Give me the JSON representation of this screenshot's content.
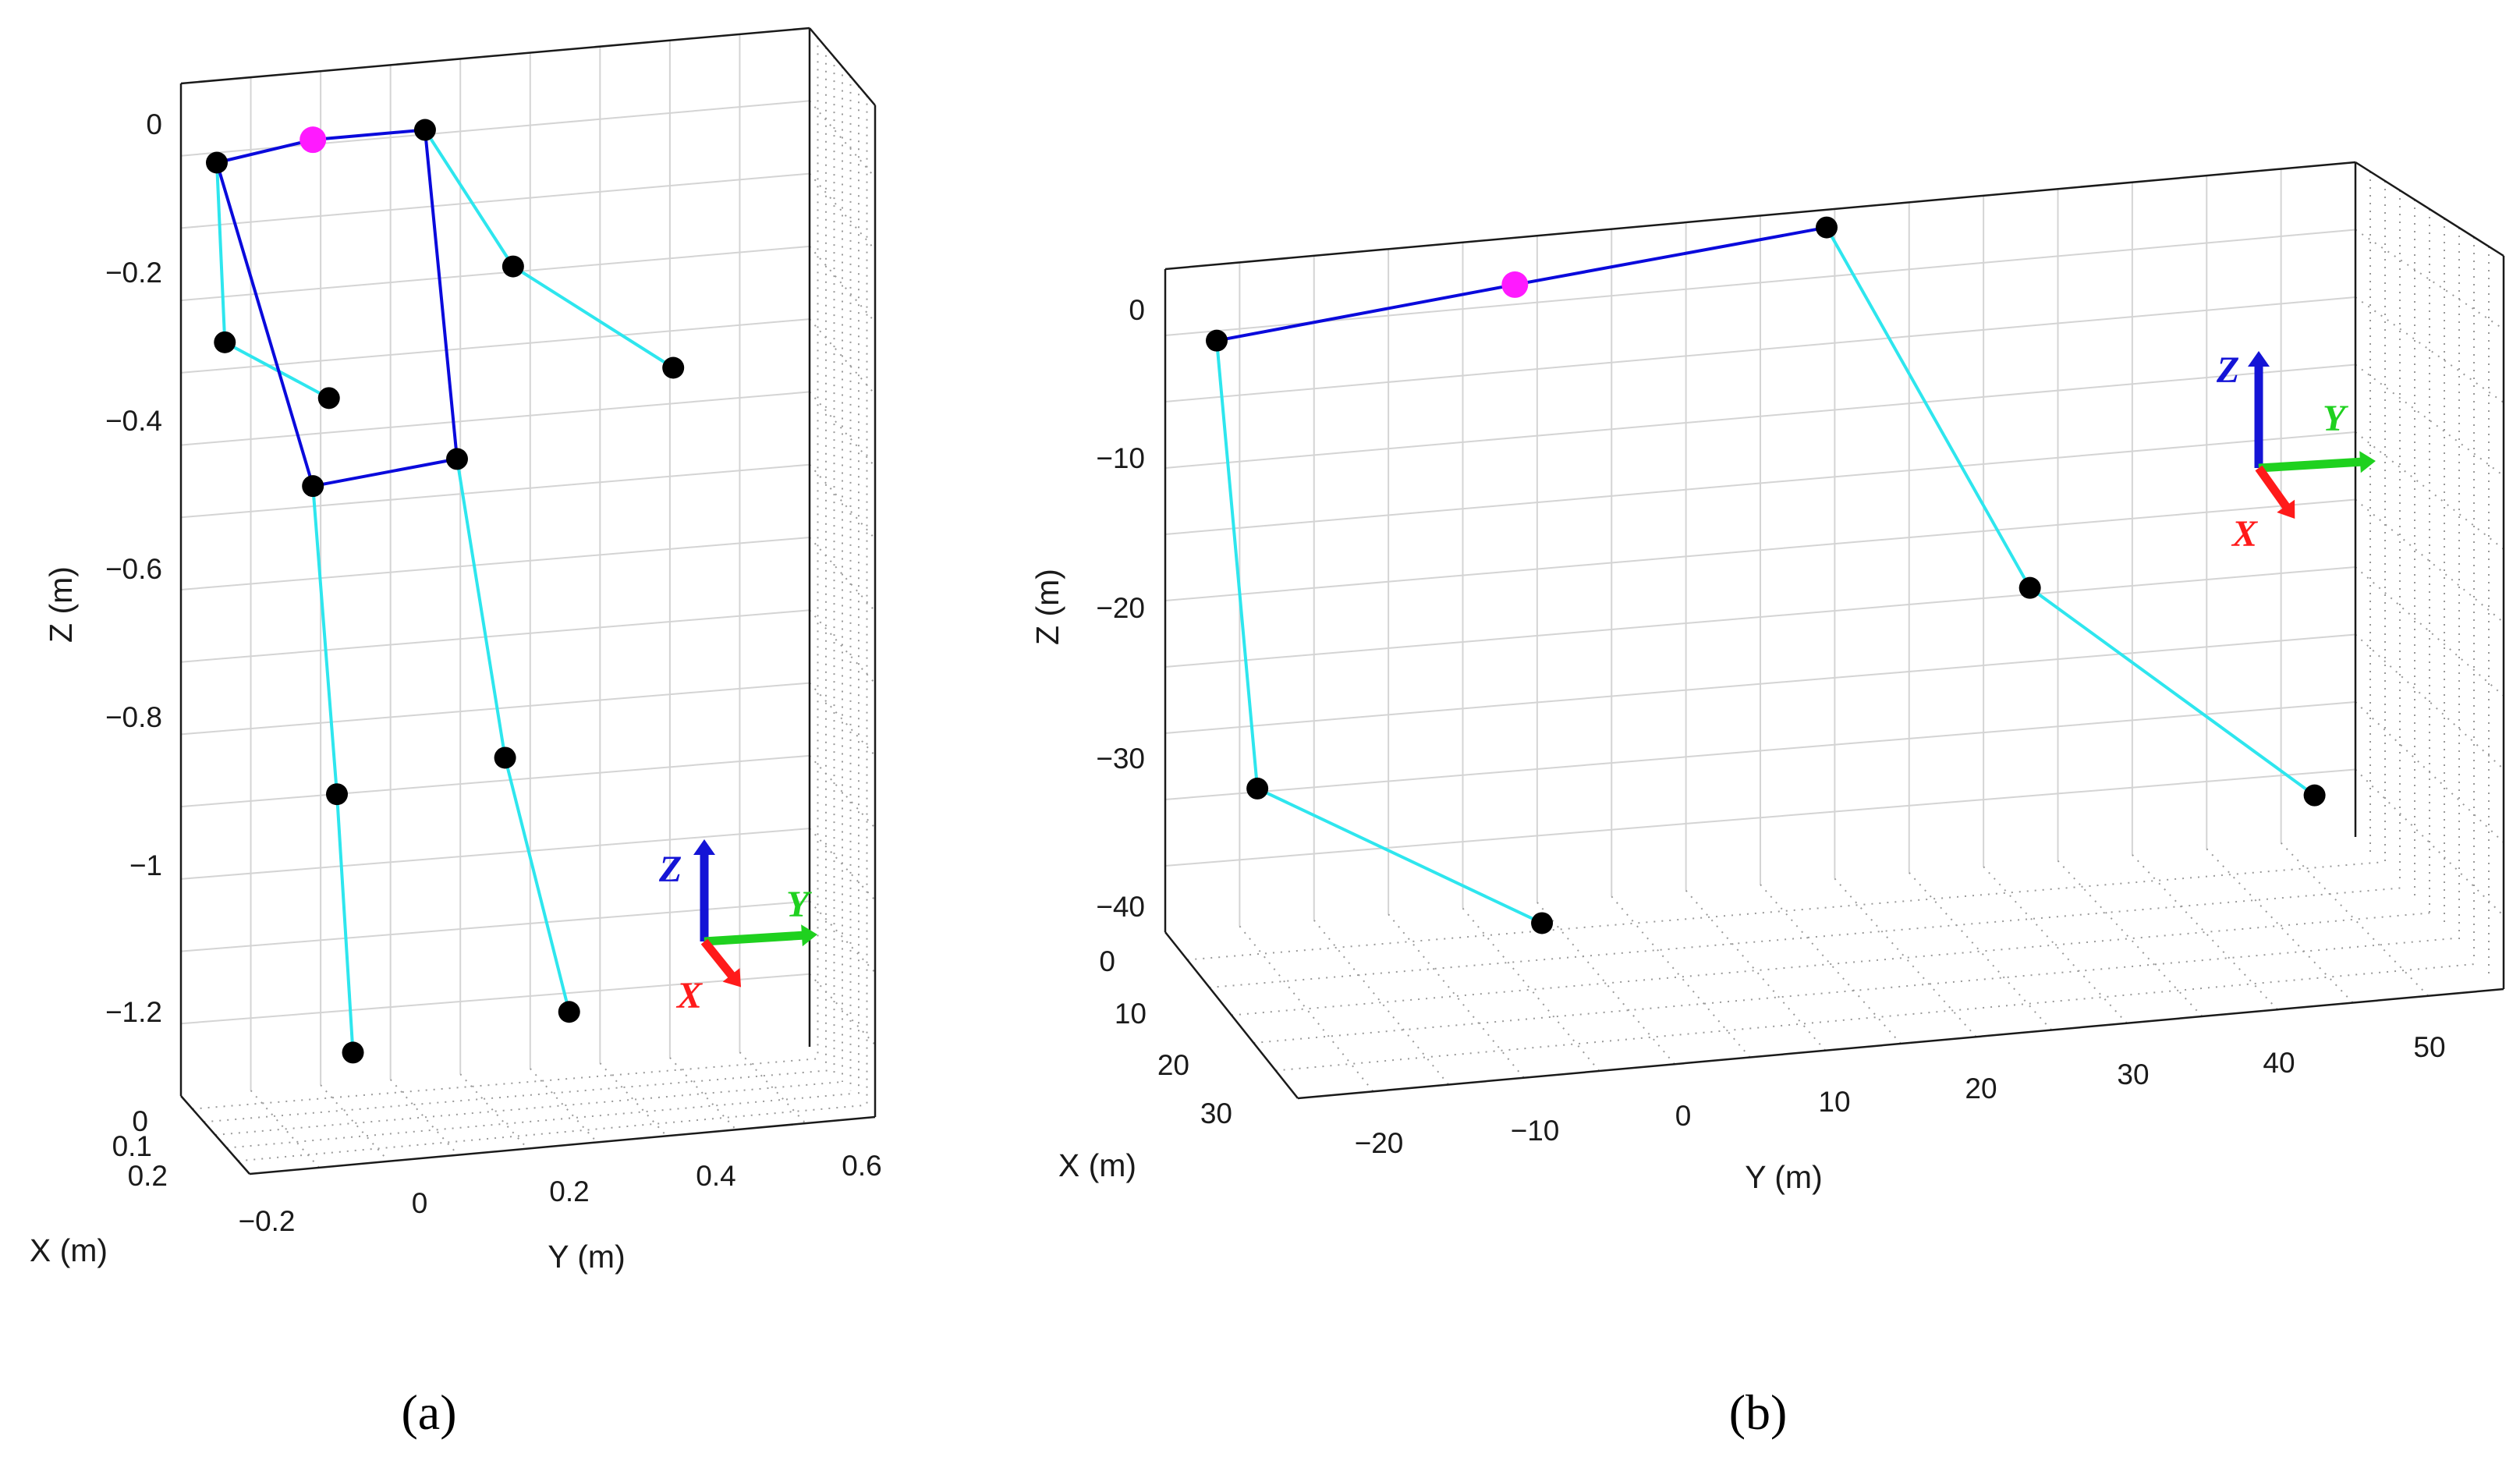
{
  "chart_data": [
    {
      "type": "scatter",
      "panel": "(a)",
      "projection": "3d",
      "xlabel": "X (m)",
      "ylabel": "Y (m)",
      "zlabel": "Z (m)",
      "x_ticks": [
        "0",
        "0.1",
        "0.2"
      ],
      "y_ticks": [
        "−0.2",
        "0",
        "0.2",
        "0.4",
        "0.6"
      ],
      "z_ticks": [
        "0",
        "−0.2",
        "−0.4",
        "−0.6",
        "−0.8",
        "−1",
        "−1.2"
      ],
      "grid": true,
      "triad": {
        "x": "X",
        "y": "Y",
        "z": "Z"
      },
      "points_yz": [
        {
          "y": -0.2,
          "z": -0.02,
          "kind": "joint"
        },
        {
          "y": -0.08,
          "z": 0.0,
          "kind": "center"
        },
        {
          "y": 0.06,
          "z": 0.0,
          "kind": "joint"
        },
        {
          "y": -0.19,
          "z": -0.27,
          "kind": "joint"
        },
        {
          "y": -0.06,
          "z": -0.36,
          "kind": "joint"
        },
        {
          "y": 0.17,
          "z": -0.2,
          "kind": "joint"
        },
        {
          "y": 0.37,
          "z": -0.36,
          "kind": "joint"
        },
        {
          "y": -0.08,
          "z": -0.48,
          "kind": "joint"
        },
        {
          "y": 0.1,
          "z": -0.46,
          "kind": "joint"
        },
        {
          "y": -0.05,
          "z": -0.91,
          "kind": "joint"
        },
        {
          "y": 0.16,
          "z": -0.88,
          "kind": "joint"
        },
        {
          "y": -0.03,
          "z": -1.27,
          "kind": "joint"
        },
        {
          "y": 0.24,
          "z": -1.24,
          "kind": "joint"
        }
      ],
      "body_links": [
        [
          0,
          1
        ],
        [
          1,
          2
        ],
        [
          0,
          7
        ],
        [
          2,
          8
        ],
        [
          7,
          8
        ]
      ],
      "limb_links": [
        [
          0,
          3
        ],
        [
          3,
          4
        ],
        [
          2,
          5
        ],
        [
          5,
          6
        ],
        [
          7,
          9
        ],
        [
          9,
          11
        ],
        [
          8,
          10
        ],
        [
          10,
          12
        ]
      ]
    },
    {
      "type": "scatter",
      "panel": "(b)",
      "projection": "3d",
      "xlabel": "X (m)",
      "ylabel": "Y (m)",
      "zlabel": "Z (m)",
      "x_ticks": [
        "0",
        "10",
        "20",
        "30"
      ],
      "y_ticks": [
        "−20",
        "−10",
        "0",
        "10",
        "20",
        "30",
        "40",
        "50"
      ],
      "z_ticks": [
        "0",
        "−10",
        "−20",
        "−30",
        "−40"
      ],
      "grid": true,
      "triad": {
        "x": "X",
        "y": "Y",
        "z": "Z"
      },
      "points_yz": [
        {
          "y": -28,
          "z": -1,
          "kind": "joint"
        },
        {
          "y": -6,
          "z": 1,
          "kind": "center"
        },
        {
          "y": 17,
          "z": 3,
          "kind": "joint"
        },
        {
          "y": -25,
          "z": -32,
          "kind": "joint"
        },
        {
          "y": -4,
          "z": -43,
          "kind": "joint"
        },
        {
          "y": 32,
          "z": -23,
          "kind": "joint"
        },
        {
          "y": 53,
          "z": -39,
          "kind": "joint"
        }
      ],
      "body_links": [
        [
          0,
          1
        ],
        [
          1,
          2
        ]
      ],
      "limb_links": [
        [
          0,
          3
        ],
        [
          3,
          4
        ],
        [
          2,
          5
        ],
        [
          5,
          6
        ]
      ]
    }
  ],
  "captions": {
    "a": "(a)",
    "b": "(b)"
  },
  "colors": {
    "body_link": "#0a0adc",
    "limb_link": "#2ee6ee",
    "joint": "#000000",
    "center": "#ff1aff",
    "triad_x": "#ff1a1a",
    "triad_y": "#1fd11f",
    "triad_z": "#1414d6",
    "grid": "#d4d4d4",
    "box": "#1a1a1a"
  }
}
